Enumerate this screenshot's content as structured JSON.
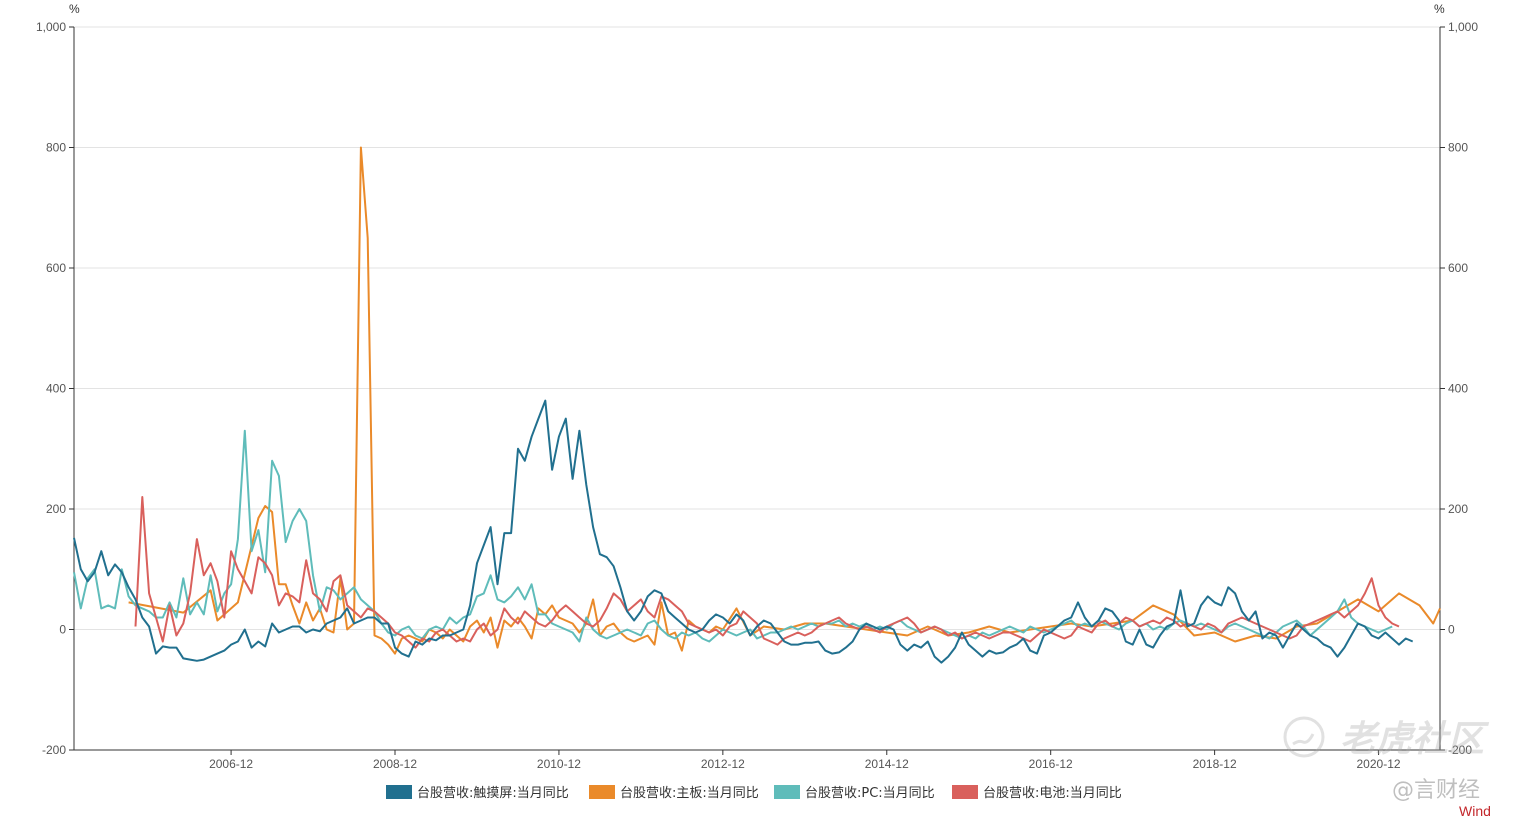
{
  "chart_data": {
    "type": "line",
    "title": "",
    "xlabel": "",
    "ylabel": "",
    "y_unit_left": "%",
    "y_unit_right": "%",
    "ylim": [
      -200,
      1000
    ],
    "y_ticks": [
      "1,000",
      "800",
      "600",
      "400",
      "200",
      "0",
      "-200"
    ],
    "y_tick_values": [
      1000,
      800,
      600,
      400,
      200,
      0,
      -200
    ],
    "x_range": [
      "2005-01",
      "2021-09"
    ],
    "x_ticks": [
      "2006-12",
      "2008-12",
      "2010-12",
      "2012-12",
      "2014-12",
      "2016-12",
      "2018-12",
      "2020-12"
    ],
    "grid": true,
    "legend_position": "bottom",
    "series": [
      {
        "name": "台股营收:触摸屏:当月同比",
        "color": "#21708f",
        "start": "2005-01",
        "values": [
          152,
          100,
          80,
          95,
          130,
          90,
          108,
          95,
          70,
          50,
          20,
          5,
          -40,
          -28,
          -30,
          -30,
          -48,
          -50,
          -52,
          -50,
          -45,
          -40,
          -35,
          -25,
          -20,
          0,
          -30,
          -20,
          -28,
          10,
          -5,
          0,
          5,
          5,
          -5,
          0,
          -3,
          10,
          15,
          20,
          35,
          10,
          15,
          20,
          20,
          10,
          10,
          -30,
          -40,
          -45,
          -20,
          -25,
          -15,
          -18,
          -10,
          -10,
          -5,
          0,
          40,
          110,
          140,
          170,
          75,
          160,
          160,
          300,
          280,
          320,
          350,
          380,
          265,
          320,
          350,
          250,
          330,
          240,
          170,
          125,
          120,
          105,
          70,
          30,
          15,
          30,
          55,
          65,
          60,
          30,
          20,
          10,
          0,
          -5,
          0,
          15,
          25,
          20,
          10,
          25,
          15,
          -10,
          5,
          15,
          10,
          -5,
          -20,
          -25,
          -25,
          -22,
          -22,
          -20,
          -35,
          -40,
          -38,
          -30,
          -20,
          0,
          10,
          5,
          0,
          5,
          0,
          -25,
          -35,
          -25,
          -30,
          -20,
          -45,
          -55,
          -45,
          -30,
          -5,
          -25,
          -35,
          -45,
          -35,
          -40,
          -38,
          -30,
          -25,
          -15,
          -35,
          -40,
          -10,
          -5,
          5,
          15,
          20,
          45,
          20,
          5,
          15,
          35,
          30,
          15,
          -20,
          -25,
          0,
          -25,
          -30,
          -10,
          5,
          10,
          65,
          5,
          10,
          40,
          55,
          45,
          40,
          70,
          60,
          30,
          15,
          30,
          -15,
          -5,
          -10,
          -30,
          -10,
          10,
          0,
          -10,
          -15,
          -25,
          -30,
          -45,
          -30,
          -10,
          10,
          5,
          -10,
          -15,
          -5,
          -15,
          -25,
          -15,
          -20
        ]
      },
      {
        "name": "台股营收:主板:当月同比",
        "color": "#ea8a2a",
        "points": [
          [
            "2005-09",
            45
          ],
          [
            "2006-05",
            28
          ],
          [
            "2006-09",
            65
          ],
          [
            "2006-10",
            15
          ],
          [
            "2007-01",
            45
          ],
          [
            "2007-04",
            185
          ],
          [
            "2007-05",
            205
          ],
          [
            "2007-06",
            195
          ],
          [
            "2007-07",
            75
          ],
          [
            "2007-08",
            75
          ],
          [
            "2007-09",
            40
          ],
          [
            "2007-10",
            10
          ],
          [
            "2007-11",
            45
          ],
          [
            "2007-12",
            15
          ],
          [
            "2008-01",
            35
          ],
          [
            "2008-02",
            0
          ],
          [
            "2008-03",
            -5
          ],
          [
            "2008-04",
            85
          ],
          [
            "2008-05",
            0
          ],
          [
            "2008-06",
            10
          ],
          [
            "2008-07",
            800
          ],
          [
            "2008-08",
            650
          ],
          [
            "2008-09",
            -10
          ],
          [
            "2008-10",
            -15
          ],
          [
            "2008-11",
            -25
          ],
          [
            "2008-12",
            -40
          ],
          [
            "2009-01",
            -15
          ],
          [
            "2009-02",
            -10
          ],
          [
            "2009-03",
            -15
          ],
          [
            "2009-04",
            -20
          ],
          [
            "2009-05",
            0
          ],
          [
            "2009-06",
            -5
          ],
          [
            "2009-07",
            -15
          ],
          [
            "2009-08",
            0
          ],
          [
            "2009-09",
            -10
          ],
          [
            "2009-10",
            -20
          ],
          [
            "2009-11",
            5
          ],
          [
            "2009-12",
            15
          ],
          [
            "2010-01",
            -5
          ],
          [
            "2010-02",
            20
          ],
          [
            "2010-03",
            -30
          ],
          [
            "2010-04",
            15
          ],
          [
            "2010-05",
            5
          ],
          [
            "2010-06",
            20
          ],
          [
            "2010-07",
            5
          ],
          [
            "2010-08",
            -15
          ],
          [
            "2010-09",
            35
          ],
          [
            "2010-10",
            25
          ],
          [
            "2010-11",
            40
          ],
          [
            "2010-12",
            20
          ],
          [
            "2011-01",
            15
          ],
          [
            "2011-02",
            10
          ],
          [
            "2011-03",
            -5
          ],
          [
            "2011-04",
            10
          ],
          [
            "2011-05",
            50
          ],
          [
            "2011-06",
            -10
          ],
          [
            "2011-07",
            5
          ],
          [
            "2011-08",
            10
          ],
          [
            "2011-09",
            -5
          ],
          [
            "2011-10",
            -15
          ],
          [
            "2011-11",
            -20
          ],
          [
            "2011-12",
            -15
          ],
          [
            "2012-01",
            -10
          ],
          [
            "2012-02",
            -25
          ],
          [
            "2012-03",
            45
          ],
          [
            "2012-04",
            -10
          ],
          [
            "2012-05",
            -5
          ],
          [
            "2012-06",
            -35
          ],
          [
            "2012-07",
            15
          ],
          [
            "2012-08",
            5
          ],
          [
            "2012-09",
            0
          ],
          [
            "2012-10",
            -5
          ],
          [
            "2012-11",
            5
          ],
          [
            "2012-12",
            0
          ],
          [
            "2013-02",
            35
          ],
          [
            "2013-04",
            -10
          ],
          [
            "2013-06",
            5
          ],
          [
            "2013-09",
            0
          ],
          [
            "2013-12",
            10
          ],
          [
            "2014-03",
            10
          ],
          [
            "2014-06",
            5
          ],
          [
            "2014-09",
            0
          ],
          [
            "2014-12",
            -5
          ],
          [
            "2015-03",
            -10
          ],
          [
            "2015-06",
            5
          ],
          [
            "2015-09",
            -10
          ],
          [
            "2015-12",
            -5
          ],
          [
            "2016-03",
            5
          ],
          [
            "2016-06",
            -5
          ],
          [
            "2016-09",
            0
          ],
          [
            "2016-12",
            5
          ],
          [
            "2017-03",
            10
          ],
          [
            "2017-06",
            5
          ],
          [
            "2017-09",
            10
          ],
          [
            "2017-12",
            15
          ],
          [
            "2018-03",
            40
          ],
          [
            "2018-06",
            25
          ],
          [
            "2018-09",
            -10
          ],
          [
            "2018-12",
            -5
          ],
          [
            "2019-03",
            -20
          ],
          [
            "2019-06",
            -10
          ],
          [
            "2019-09",
            -15
          ],
          [
            "2019-12",
            5
          ],
          [
            "2020-03",
            10
          ],
          [
            "2020-06",
            30
          ],
          [
            "2020-09",
            50
          ],
          [
            "2020-12",
            30
          ],
          [
            "2021-03",
            60
          ],
          [
            "2021-06",
            40
          ],
          [
            "2021-08",
            10
          ],
          [
            "2021-09",
            35
          ]
        ]
      },
      {
        "name": "台股营收:PC:当月同比",
        "color": "#5fbcba",
        "start": "2005-01",
        "values": [
          95,
          35,
          85,
          100,
          35,
          40,
          35,
          100,
          55,
          40,
          35,
          30,
          20,
          20,
          45,
          20,
          85,
          25,
          45,
          25,
          90,
          30,
          60,
          75,
          150,
          330,
          130,
          165,
          95,
          280,
          255,
          145,
          180,
          200,
          180,
          90,
          30,
          70,
          65,
          50,
          60,
          70,
          50,
          40,
          30,
          10,
          -5,
          -10,
          0,
          5,
          -10,
          -15,
          0,
          5,
          0,
          20,
          10,
          20,
          25,
          55,
          60,
          90,
          50,
          45,
          55,
          70,
          50,
          75,
          25,
          25,
          10,
          5,
          0,
          -5,
          -20,
          20,
          0,
          -10,
          -15,
          -10,
          -5,
          0,
          -5,
          -10,
          10,
          15,
          0,
          -10,
          -15,
          -5,
          -10,
          -5,
          -15,
          -20,
          -10,
          0,
          -5,
          -10,
          -5,
          0,
          -15,
          -10,
          -5,
          -5,
          0,
          5,
          0,
          5,
          10,
          5,
          10,
          10,
          15,
          5,
          10,
          5,
          10,
          0,
          5,
          0,
          10,
          15,
          5,
          0,
          -5,
          0,
          5,
          0,
          -5,
          -10,
          -15,
          -10,
          -15,
          -5,
          -10,
          -5,
          0,
          5,
          0,
          -5,
          5,
          0,
          -5,
          0,
          5,
          10,
          15,
          5,
          10,
          5,
          15,
          10,
          5,
          0,
          10,
          15,
          5,
          10,
          0,
          5,
          0,
          10,
          15,
          10,
          5,
          10,
          5,
          0,
          -5,
          5,
          10,
          5,
          0,
          -5,
          -10,
          -15,
          -5,
          5,
          10,
          15,
          5,
          -10,
          0,
          10,
          20,
          30,
          50,
          20,
          10,
          5,
          0,
          -5,
          0,
          5
        ]
      },
      {
        "name": "台股营收:电池:当月同比",
        "color": "#d9605c",
        "start": "2005-10",
        "values": [
          5,
          220,
          60,
          20,
          -20,
          40,
          -10,
          10,
          60,
          150,
          90,
          110,
          80,
          20,
          130,
          100,
          80,
          60,
          120,
          110,
          90,
          40,
          60,
          55,
          45,
          115,
          60,
          50,
          30,
          80,
          90,
          40,
          30,
          20,
          35,
          30,
          20,
          10,
          -5,
          -10,
          -20,
          -30,
          -15,
          -20,
          -5,
          0,
          -10,
          -20,
          -15,
          -20,
          0,
          10,
          -10,
          0,
          35,
          20,
          10,
          30,
          20,
          10,
          5,
          15,
          30,
          40,
          30,
          20,
          10,
          5,
          15,
          35,
          60,
          50,
          30,
          40,
          50,
          30,
          20,
          55,
          50,
          40,
          30,
          10,
          5,
          0,
          -5,
          0,
          -10,
          5,
          10,
          30,
          20,
          10,
          -15,
          -20,
          -25,
          -15,
          -10,
          -5,
          -10,
          -5,
          5,
          10,
          15,
          20,
          10,
          5,
          0,
          5,
          0,
          -5,
          5,
          10,
          15,
          20,
          10,
          -5,
          0,
          5,
          0,
          -10,
          -5,
          -15,
          -10,
          -5,
          -10,
          -15,
          -10,
          -5,
          -5,
          -10,
          -15,
          -20,
          -10,
          0,
          -5,
          -10,
          -15,
          -10,
          5,
          0,
          -5,
          10,
          15,
          5,
          10,
          20,
          15,
          5,
          10,
          15,
          10,
          20,
          15,
          5,
          10,
          5,
          0,
          10,
          5,
          -5,
          10,
          15,
          20,
          15,
          10,
          5,
          0,
          -5,
          -10,
          -15,
          -10,
          5,
          10,
          15,
          20,
          25,
          30,
          20,
          30,
          40,
          60,
          85,
          40,
          20,
          10,
          5
        ]
      }
    ]
  },
  "watermark": {
    "main": "老虎社区",
    "sub": "@言财经",
    "brand": "Wind"
  }
}
